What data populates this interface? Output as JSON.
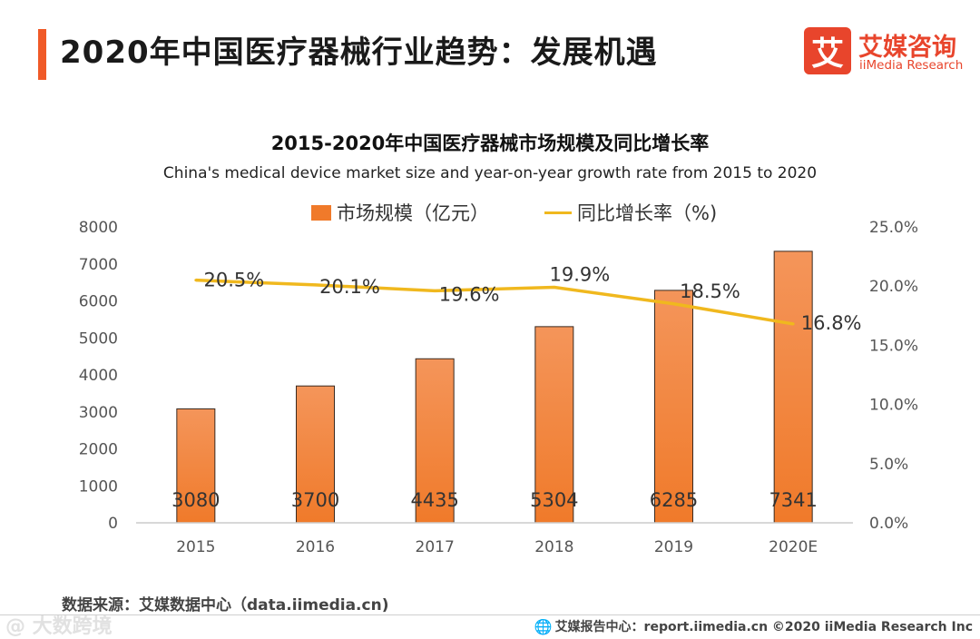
{
  "header": {
    "title": "2020年中国医疗器械行业趋势：发展机遇",
    "accent_color": "#f05a28"
  },
  "logo": {
    "mark": "艾",
    "name_cn": "艾媒咨询",
    "name_en": "iiMedia Research",
    "color": "#e8452c"
  },
  "chart_data": {
    "type": "bar",
    "title": "2015-2020年中国医疗器械市场规模及同比增长率",
    "subtitle": "China's medical device market size and year-on-year growth rate from 2015 to 2020",
    "categories": [
      "2015",
      "2016",
      "2017",
      "2018",
      "2019",
      "2020E"
    ],
    "series": [
      {
        "name": "市场规模（亿元）",
        "type": "bar",
        "axis": "left",
        "values": [
          3080,
          3700,
          4435,
          5304,
          6285,
          7341
        ],
        "labels": [
          "3080",
          "3700",
          "4435",
          "5304",
          "6285",
          "7341"
        ],
        "color": "#f07a2a"
      },
      {
        "name": "同比增长率（%)",
        "type": "line",
        "axis": "right",
        "values": [
          20.5,
          20.1,
          19.6,
          19.9,
          18.5,
          16.8
        ],
        "labels": [
          "20.5%",
          "20.1%",
          "19.6%",
          "19.9%",
          "18.5%",
          "16.8%"
        ],
        "color": "#f0b81e"
      }
    ],
    "left_axis": {
      "ylim": [
        0,
        8000
      ],
      "ticks": [
        "0",
        "1000",
        "2000",
        "3000",
        "4000",
        "5000",
        "6000",
        "7000",
        "8000"
      ],
      "tick_values": [
        0,
        1000,
        2000,
        3000,
        4000,
        5000,
        6000,
        7000,
        8000
      ]
    },
    "right_axis": {
      "ylim": [
        0,
        25
      ],
      "ticks": [
        "0.0%",
        "5.0%",
        "10.0%",
        "15.0%",
        "20.0%",
        "25.0%"
      ],
      "tick_values": [
        0,
        5,
        10,
        15,
        20,
        25
      ]
    },
    "grid": false,
    "legend_position": "top"
  },
  "source": "数据来源：艾媒数据中心（data.iimedia.cn)",
  "footer": {
    "text": "艾媒报告中心：report.iimedia.cn  ©2020  iiMedia Research  Inc",
    "icon": "globe-icon"
  },
  "watermark": "@ 大数跨境"
}
